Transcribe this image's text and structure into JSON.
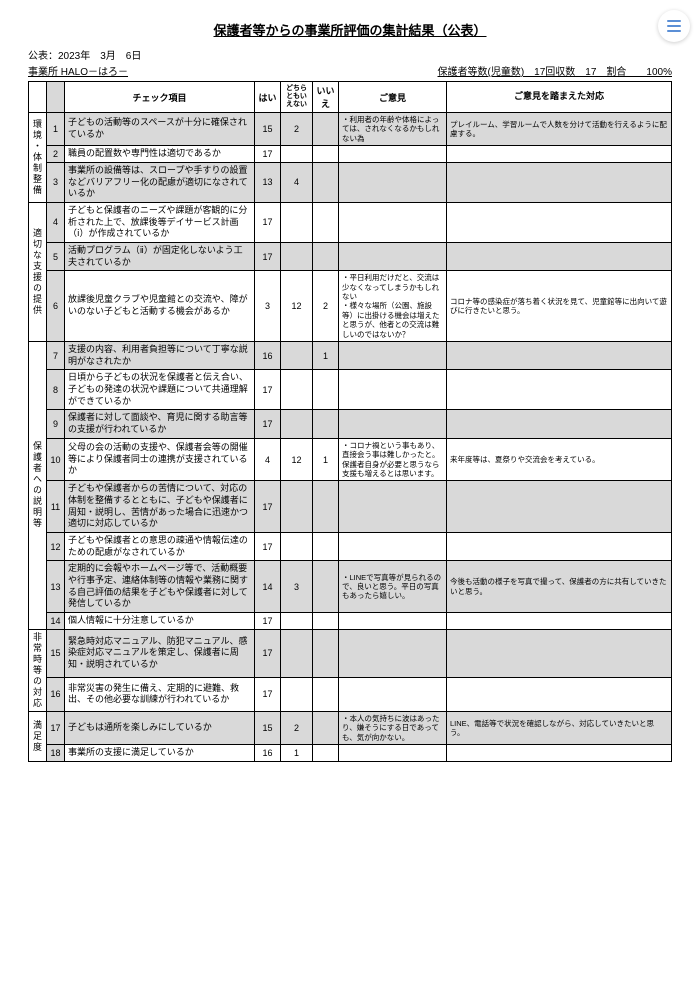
{
  "title": "保護者等からの事業所評価の集計結果（公表）",
  "pub_date_label": "公表：2023年　3月　6日",
  "jigyousho": "事業所 HALO－はろ－",
  "header_right": "保護者等数(児童数)　17回収数　17　割合　　100%",
  "headers": {
    "item": "チェック項目",
    "yes": "はい",
    "mid": "どちらともいえない",
    "no": "いいえ",
    "op1": "ご意見",
    "op2": "ご意見を踏まえた対応"
  },
  "categories": [
    {
      "label": "環境・体制整備",
      "rows": [
        {
          "n": "1",
          "item": "子どもの活動等のスペースが十分に確保されているか",
          "yes": "15",
          "mid": "2",
          "no": "",
          "op1": "・利用者の年齢や体格によっては、されなくなるかもしれない為",
          "op2": "プレイルーム、学習ルームで人数を分けて活動を行えるように配慮する。",
          "gray": true
        },
        {
          "n": "2",
          "item": "職員の配置数や専門性は適切であるか",
          "yes": "17",
          "mid": "",
          "no": "",
          "op1": "",
          "op2": ""
        },
        {
          "n": "3",
          "item": "事業所の設備等は、スロープや手すりの設置などバリアフリー化の配慮が適切になされているか",
          "yes": "13",
          "mid": "4",
          "no": "",
          "op1": "",
          "op2": "",
          "gray": true
        }
      ]
    },
    {
      "label": "適切な支援の提供",
      "rows": [
        {
          "n": "4",
          "item": "子どもと保護者のニーズや課題が客観的に分析された上で、放課後等デイサービス計画（ⅰ）が作成されているか",
          "yes": "17",
          "mid": "",
          "no": "",
          "op1": "",
          "op2": ""
        },
        {
          "n": "5",
          "item": "活動プログラム（ⅱ）が固定化しないよう工夫されているか",
          "yes": "17",
          "mid": "",
          "no": "",
          "op1": "",
          "op2": "",
          "gray": true
        },
        {
          "n": "6",
          "item": "放課後児童クラブや児童館との交流や、障がいのない子どもと活動する機会があるか",
          "yes": "3",
          "mid": "12",
          "no": "2",
          "op1": "・平日利用だけだと、交流は少なくなってしまうかもしれない\n・様々な場所（公園、施設等）に出掛ける機会は増えたと思うが、他者との交流は難しいのではないか？",
          "op2": "コロナ等の感染症が落ち着く状況を見て、児童館等に出向いて遊びに行きたいと思う。"
        }
      ]
    },
    {
      "label": "保護者への説明等",
      "rows": [
        {
          "n": "7",
          "item": "支援の内容、利用者負担等について丁寧な説明がなされたか",
          "yes": "16",
          "mid": "",
          "no": "1",
          "op1": "",
          "op2": "",
          "gray": true
        },
        {
          "n": "8",
          "item": "日頃から子どもの状況を保護者と伝え合い、子どもの発達の状況や課題について共通理解ができているか",
          "yes": "17",
          "mid": "",
          "no": "",
          "op1": "",
          "op2": ""
        },
        {
          "n": "9",
          "item": "保護者に対して面談や、育児に関する助言等の支援が行われているか",
          "yes": "17",
          "mid": "",
          "no": "",
          "op1": "",
          "op2": "",
          "gray": true
        },
        {
          "n": "10",
          "item": "父母の会の活動の支援や、保護者会等の開催等により保護者同士の連携が支援されているか",
          "yes": "4",
          "mid": "12",
          "no": "1",
          "op1": "・コロナ禍という事もあり、直接会う事は難しかったと。保護者自身が必要と思うなら支援も増えるとは思います。",
          "op2": "来年度等は、夏祭りや交流会を考えている。"
        },
        {
          "n": "11",
          "item": "子どもや保護者からの苦情について、対応の体制を整備するとともに、子どもや保護者に周知・説明し、苦情があった場合に迅速かつ適切に対応しているか",
          "yes": "17",
          "mid": "",
          "no": "",
          "op1": "",
          "op2": "",
          "gray": true
        },
        {
          "n": "12",
          "item": "子どもや保護者との意思の疎通や情報伝達のための配慮がなされているか",
          "yes": "17",
          "mid": "",
          "no": "",
          "op1": "",
          "op2": ""
        },
        {
          "n": "13",
          "item": "定期的に会報やホームページ等で、活動概要や行事予定、連絡体制等の情報や業務に関する自己評価の結果を子どもや保護者に対して発信しているか",
          "yes": "14",
          "mid": "3",
          "no": "",
          "op1": "・LINEで写真等が見られるので、良いと思う。平日の写真もあったら嬉しい。",
          "op2": "今後も活動の様子を写真で撮って、保護者の方に共有していきたいと思う。",
          "gray": true
        },
        {
          "n": "14",
          "item": "個人情報に十分注意しているか",
          "yes": "17",
          "mid": "",
          "no": "",
          "op1": "",
          "op2": ""
        }
      ]
    },
    {
      "label": "非常時等の対応",
      "rows": [
        {
          "n": "15",
          "item": "緊急時対応マニュアル、防犯マニュアル、感染症対応マニュアルを策定し、保護者に周知・説明されているか",
          "yes": "17",
          "mid": "",
          "no": "",
          "op1": "",
          "op2": "",
          "gray": true
        },
        {
          "n": "16",
          "item": "非常災害の発生に備え、定期的に避難、救出、その他必要な訓練が行われているか",
          "yes": "17",
          "mid": "",
          "no": "",
          "op1": "",
          "op2": ""
        }
      ]
    },
    {
      "label": "満足度",
      "rows": [
        {
          "n": "17",
          "item": "子どもは通所を楽しみにしているか",
          "yes": "15",
          "mid": "2",
          "no": "",
          "op1": "・本人の気持ちに波はあったり、嫌そうにする日であっても、気が向かない。",
          "op2": "LINE、電話等で状況を確認しながら、対応していきたいと思う。",
          "gray": true
        },
        {
          "n": "18",
          "item": "事業所の支援に満足しているか",
          "yes": "16",
          "mid": "1",
          "no": "",
          "op1": "",
          "op2": ""
        }
      ]
    }
  ]
}
